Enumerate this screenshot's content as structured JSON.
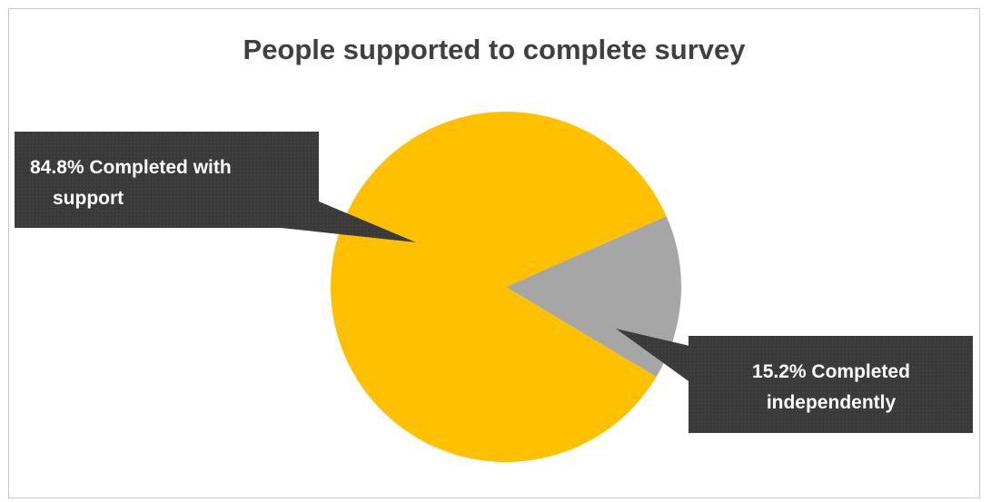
{
  "chart_data": {
    "type": "pie",
    "title": "People supported to complete survey",
    "slices": [
      {
        "label": "Completed with support",
        "value": 84.8,
        "color": "#FFC000",
        "label_lines": [
          "84.8% Completed with",
          "support"
        ]
      },
      {
        "label": "Completed independently",
        "value": 15.2,
        "color": "#A6A6A6",
        "label_lines": [
          "15.2% Completed",
          "independently"
        ]
      }
    ],
    "legend": "none",
    "data_labels": "callouts"
  }
}
